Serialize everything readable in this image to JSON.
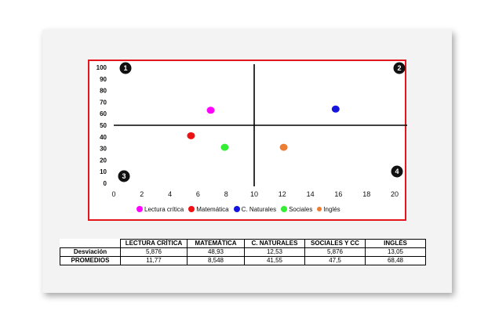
{
  "chart_data": {
    "type": "scatter",
    "title": "",
    "xlabel": "",
    "ylabel": "",
    "xlim": [
      0,
      20
    ],
    "ylim": [
      0,
      100
    ],
    "x_ticks": [
      "0",
      "2",
      "4",
      "6",
      "8",
      "10",
      "12",
      "14",
      "16",
      "18",
      "20"
    ],
    "y_ticks": [
      "0",
      "10",
      "20",
      "30",
      "40",
      "50",
      "60",
      "70",
      "80",
      "90",
      "100"
    ],
    "quadrant_lines": {
      "x": 10,
      "y": 50
    },
    "quadrant_labels": [
      "1",
      "2",
      "3",
      "4"
    ],
    "legend_position": "bottom",
    "series": [
      {
        "name": "Lectura crítica",
        "color": "#ff00ff",
        "x": 6.9,
        "y": 63
      },
      {
        "name": "Matemática",
        "color": "#ee1111",
        "x": 5.5,
        "y": 41
      },
      {
        "name": "C. Naturales",
        "color": "#1515dd",
        "x": 15.8,
        "y": 64
      },
      {
        "name": "Sociales",
        "color": "#33ee33",
        "x": 7.9,
        "y": 31
      },
      {
        "name": "Inglés",
        "color": "#ed7d31",
        "x": 12.1,
        "y": 31
      }
    ]
  },
  "table": {
    "headers": [
      "LECTURA CRÍTICA",
      "MATEMÁTICA",
      "C. NATURALES",
      "SOCIALES Y CC",
      "INGLÉS"
    ],
    "rows": [
      {
        "label": "Desviación",
        "values": [
          "5,876",
          "48,93",
          "12,53",
          "5,876",
          "13,05"
        ]
      },
      {
        "label": "PROMEDIOS",
        "values": [
          "11,77",
          "8,548",
          "41,55",
          "47,5",
          "68,48"
        ]
      }
    ]
  }
}
